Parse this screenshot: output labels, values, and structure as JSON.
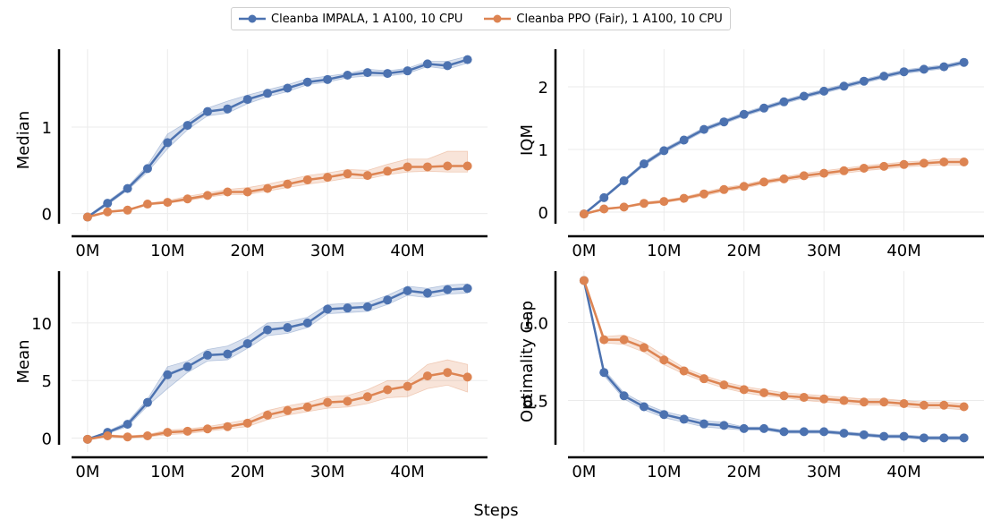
{
  "legend": [
    {
      "name": "Cleanba IMPALA, 1 A100, 10 CPU",
      "color": "#4c72b0"
    },
    {
      "name": "Cleanba PPO (Fair), 1 A100, 10 CPU",
      "color": "#dd8452"
    }
  ],
  "xlabel": "Steps",
  "chart_data": [
    {
      "type": "line",
      "ylabel": "Median",
      "xlim": [
        -2,
        50
      ],
      "ylim": [
        -0.2,
        1.9
      ],
      "xticks": [
        0,
        10,
        20,
        30,
        40
      ],
      "xtick_labels": [
        "0M",
        "10M",
        "20M",
        "30M",
        "40M"
      ],
      "yticks": [
        0,
        1
      ],
      "ytick_labels": [
        "0",
        "1"
      ],
      "grid": true,
      "x": [
        0,
        2.5,
        5,
        7.5,
        10,
        12.5,
        15,
        17.5,
        20,
        22.5,
        25,
        27.5,
        30,
        32.5,
        35,
        37.5,
        40,
        42.5,
        45,
        47.5
      ],
      "series": [
        {
          "name": "Cleanba IMPALA, 1 A100, 10 CPU",
          "color": "#4c72b0",
          "values": [
            -0.04,
            0.12,
            0.29,
            0.52,
            0.82,
            1.02,
            1.18,
            1.21,
            1.32,
            1.39,
            1.45,
            1.52,
            1.55,
            1.6,
            1.63,
            1.62,
            1.65,
            1.73,
            1.71,
            1.78
          ],
          "lower": [
            -0.05,
            0.1,
            0.27,
            0.48,
            0.75,
            0.97,
            1.13,
            1.16,
            1.27,
            1.35,
            1.41,
            1.49,
            1.52,
            1.57,
            1.59,
            1.59,
            1.62,
            1.7,
            1.67,
            1.74
          ],
          "upper": [
            -0.03,
            0.14,
            0.31,
            0.56,
            0.92,
            1.06,
            1.22,
            1.3,
            1.37,
            1.43,
            1.49,
            1.56,
            1.59,
            1.62,
            1.67,
            1.65,
            1.68,
            1.76,
            1.76,
            1.82
          ]
        },
        {
          "name": "Cleanba PPO (Fair), 1 A100, 10 CPU",
          "color": "#dd8452",
          "values": [
            -0.04,
            0.02,
            0.04,
            0.11,
            0.13,
            0.17,
            0.21,
            0.25,
            0.25,
            0.29,
            0.34,
            0.39,
            0.42,
            0.46,
            0.44,
            0.49,
            0.54,
            0.54,
            0.55,
            0.55
          ],
          "lower": [
            -0.05,
            0.01,
            0.03,
            0.1,
            0.12,
            0.15,
            0.19,
            0.22,
            0.22,
            0.26,
            0.3,
            0.34,
            0.37,
            0.41,
            0.4,
            0.45,
            0.48,
            0.49,
            0.48,
            0.48
          ],
          "upper": [
            -0.03,
            0.03,
            0.05,
            0.12,
            0.15,
            0.2,
            0.24,
            0.28,
            0.3,
            0.34,
            0.39,
            0.44,
            0.47,
            0.51,
            0.5,
            0.57,
            0.63,
            0.63,
            0.72,
            0.72
          ]
        }
      ]
    },
    {
      "type": "line",
      "ylabel": "IQM",
      "xlim": [
        -2,
        50
      ],
      "ylim": [
        -0.3,
        2.6
      ],
      "xticks": [
        0,
        10,
        20,
        30,
        40
      ],
      "xtick_labels": [
        "0M",
        "10M",
        "20M",
        "30M",
        "40M"
      ],
      "yticks": [
        0,
        1,
        2
      ],
      "ytick_labels": [
        "0",
        "1",
        "2"
      ],
      "grid": true,
      "x": [
        0,
        2.5,
        5,
        7.5,
        10,
        12.5,
        15,
        17.5,
        20,
        22.5,
        25,
        27.5,
        30,
        32.5,
        35,
        37.5,
        40,
        42.5,
        45,
        47.5
      ],
      "series": [
        {
          "name": "Cleanba IMPALA, 1 A100, 10 CPU",
          "color": "#4c72b0",
          "values": [
            -0.03,
            0.23,
            0.5,
            0.77,
            0.98,
            1.15,
            1.32,
            1.44,
            1.56,
            1.66,
            1.76,
            1.85,
            1.93,
            2.01,
            2.09,
            2.17,
            2.24,
            2.28,
            2.32,
            2.39
          ],
          "lower": [
            -0.04,
            0.21,
            0.48,
            0.74,
            0.95,
            1.12,
            1.29,
            1.41,
            1.53,
            1.63,
            1.73,
            1.82,
            1.9,
            1.98,
            2.06,
            2.14,
            2.21,
            2.25,
            2.29,
            2.36
          ],
          "upper": [
            -0.02,
            0.25,
            0.52,
            0.8,
            1.01,
            1.18,
            1.35,
            1.47,
            1.59,
            1.69,
            1.79,
            1.88,
            1.96,
            2.04,
            2.12,
            2.2,
            2.27,
            2.31,
            2.35,
            2.42
          ]
        },
        {
          "name": "Cleanba PPO (Fair), 1 A100, 10 CPU",
          "color": "#dd8452",
          "values": [
            -0.03,
            0.05,
            0.08,
            0.14,
            0.17,
            0.22,
            0.29,
            0.36,
            0.41,
            0.48,
            0.53,
            0.58,
            0.62,
            0.66,
            0.7,
            0.73,
            0.76,
            0.78,
            0.8,
            0.8
          ],
          "lower": [
            -0.04,
            0.04,
            0.07,
            0.12,
            0.15,
            0.2,
            0.26,
            0.33,
            0.38,
            0.45,
            0.5,
            0.54,
            0.58,
            0.62,
            0.66,
            0.69,
            0.72,
            0.74,
            0.75,
            0.75
          ],
          "upper": [
            -0.02,
            0.06,
            0.09,
            0.16,
            0.19,
            0.24,
            0.32,
            0.39,
            0.44,
            0.51,
            0.56,
            0.62,
            0.66,
            0.7,
            0.74,
            0.77,
            0.8,
            0.82,
            0.85,
            0.85
          ]
        }
      ]
    },
    {
      "type": "line",
      "ylabel": "Mean",
      "xlim": [
        -2,
        50
      ],
      "ylim": [
        -1.2,
        14.5
      ],
      "xticks": [
        0,
        10,
        20,
        30,
        40
      ],
      "xtick_labels": [
        "0M",
        "10M",
        "20M",
        "30M",
        "40M"
      ],
      "yticks": [
        0,
        5,
        10
      ],
      "ytick_labels": [
        "0",
        "5",
        "10"
      ],
      "grid": true,
      "x": [
        0,
        2.5,
        5,
        7.5,
        10,
        12.5,
        15,
        17.5,
        20,
        22.5,
        25,
        27.5,
        30,
        32.5,
        35,
        37.5,
        40,
        42.5,
        45,
        47.5
      ],
      "series": [
        {
          "name": "Cleanba IMPALA, 1 A100, 10 CPU",
          "color": "#4c72b0",
          "values": [
            -0.1,
            0.5,
            1.2,
            3.1,
            5.5,
            6.2,
            7.2,
            7.3,
            8.2,
            9.4,
            9.6,
            10.0,
            11.2,
            11.3,
            11.4,
            12.0,
            12.8,
            12.6,
            12.9,
            13.0
          ],
          "lower": [
            -0.1,
            0.4,
            1.0,
            2.8,
            4.3,
            5.7,
            6.7,
            6.8,
            7.8,
            8.9,
            9.1,
            9.6,
            10.8,
            10.9,
            11.0,
            11.6,
            12.4,
            12.2,
            12.5,
            12.6
          ],
          "upper": [
            -0.1,
            0.6,
            1.4,
            3.4,
            6.2,
            6.7,
            7.7,
            8.0,
            8.8,
            10.0,
            10.1,
            10.5,
            11.6,
            11.7,
            11.8,
            12.4,
            13.2,
            13.0,
            13.3,
            13.4
          ]
        },
        {
          "name": "Cleanba PPO (Fair), 1 A100, 10 CPU",
          "color": "#dd8452",
          "values": [
            -0.1,
            0.2,
            0.1,
            0.2,
            0.5,
            0.6,
            0.8,
            1.0,
            1.3,
            2.0,
            2.4,
            2.7,
            3.1,
            3.2,
            3.6,
            4.2,
            4.5,
            5.4,
            5.7,
            5.3
          ],
          "lower": [
            -0.1,
            0.1,
            0.0,
            0.1,
            0.3,
            0.4,
            0.6,
            0.8,
            1.0,
            1.6,
            2.0,
            2.3,
            2.6,
            2.7,
            3.0,
            3.5,
            3.6,
            4.3,
            4.6,
            4.0
          ],
          "upper": [
            -0.1,
            0.3,
            0.2,
            0.3,
            0.7,
            0.8,
            1.0,
            1.3,
            1.6,
            2.4,
            2.8,
            3.1,
            3.6,
            3.7,
            4.2,
            5.0,
            5.0,
            6.4,
            6.8,
            6.4
          ]
        }
      ]
    },
    {
      "type": "line",
      "ylabel": "Optimality Gap",
      "xlim": [
        -2,
        50
      ],
      "ylim": [
        0.17,
        1.33
      ],
      "xticks": [
        0,
        10,
        20,
        30,
        40
      ],
      "xtick_labels": [
        "0M",
        "10M",
        "20M",
        "30M",
        "40M"
      ],
      "yticks": [
        0.5,
        1.0
      ],
      "ytick_labels": [
        "0.5",
        "1.0"
      ],
      "grid": true,
      "x": [
        0,
        2.5,
        5,
        7.5,
        10,
        12.5,
        15,
        17.5,
        20,
        22.5,
        25,
        27.5,
        30,
        32.5,
        35,
        37.5,
        40,
        42.5,
        45,
        47.5
      ],
      "series": [
        {
          "name": "Cleanba IMPALA, 1 A100, 10 CPU",
          "color": "#4c72b0",
          "values": [
            1.27,
            0.68,
            0.53,
            0.46,
            0.41,
            0.38,
            0.35,
            0.34,
            0.32,
            0.32,
            0.3,
            0.3,
            0.3,
            0.29,
            0.28,
            0.27,
            0.27,
            0.26,
            0.26,
            0.26
          ],
          "lower": [
            1.26,
            0.66,
            0.51,
            0.44,
            0.39,
            0.36,
            0.33,
            0.32,
            0.31,
            0.31,
            0.29,
            0.29,
            0.29,
            0.28,
            0.27,
            0.26,
            0.26,
            0.25,
            0.25,
            0.25
          ],
          "upper": [
            1.28,
            0.7,
            0.55,
            0.48,
            0.43,
            0.4,
            0.37,
            0.36,
            0.33,
            0.33,
            0.31,
            0.31,
            0.31,
            0.3,
            0.29,
            0.28,
            0.28,
            0.27,
            0.27,
            0.27
          ]
        },
        {
          "name": "Cleanba PPO (Fair), 1 A100, 10 CPU",
          "color": "#dd8452",
          "values": [
            1.27,
            0.89,
            0.89,
            0.84,
            0.76,
            0.69,
            0.64,
            0.6,
            0.57,
            0.55,
            0.53,
            0.52,
            0.51,
            0.5,
            0.49,
            0.49,
            0.48,
            0.47,
            0.47,
            0.46
          ],
          "lower": [
            1.26,
            0.87,
            0.86,
            0.81,
            0.73,
            0.67,
            0.62,
            0.58,
            0.55,
            0.53,
            0.52,
            0.5,
            0.49,
            0.48,
            0.47,
            0.47,
            0.46,
            0.45,
            0.45,
            0.44
          ],
          "upper": [
            1.28,
            0.91,
            0.92,
            0.87,
            0.79,
            0.71,
            0.66,
            0.62,
            0.59,
            0.57,
            0.55,
            0.54,
            0.53,
            0.52,
            0.51,
            0.51,
            0.5,
            0.49,
            0.49,
            0.48
          ]
        }
      ]
    }
  ]
}
